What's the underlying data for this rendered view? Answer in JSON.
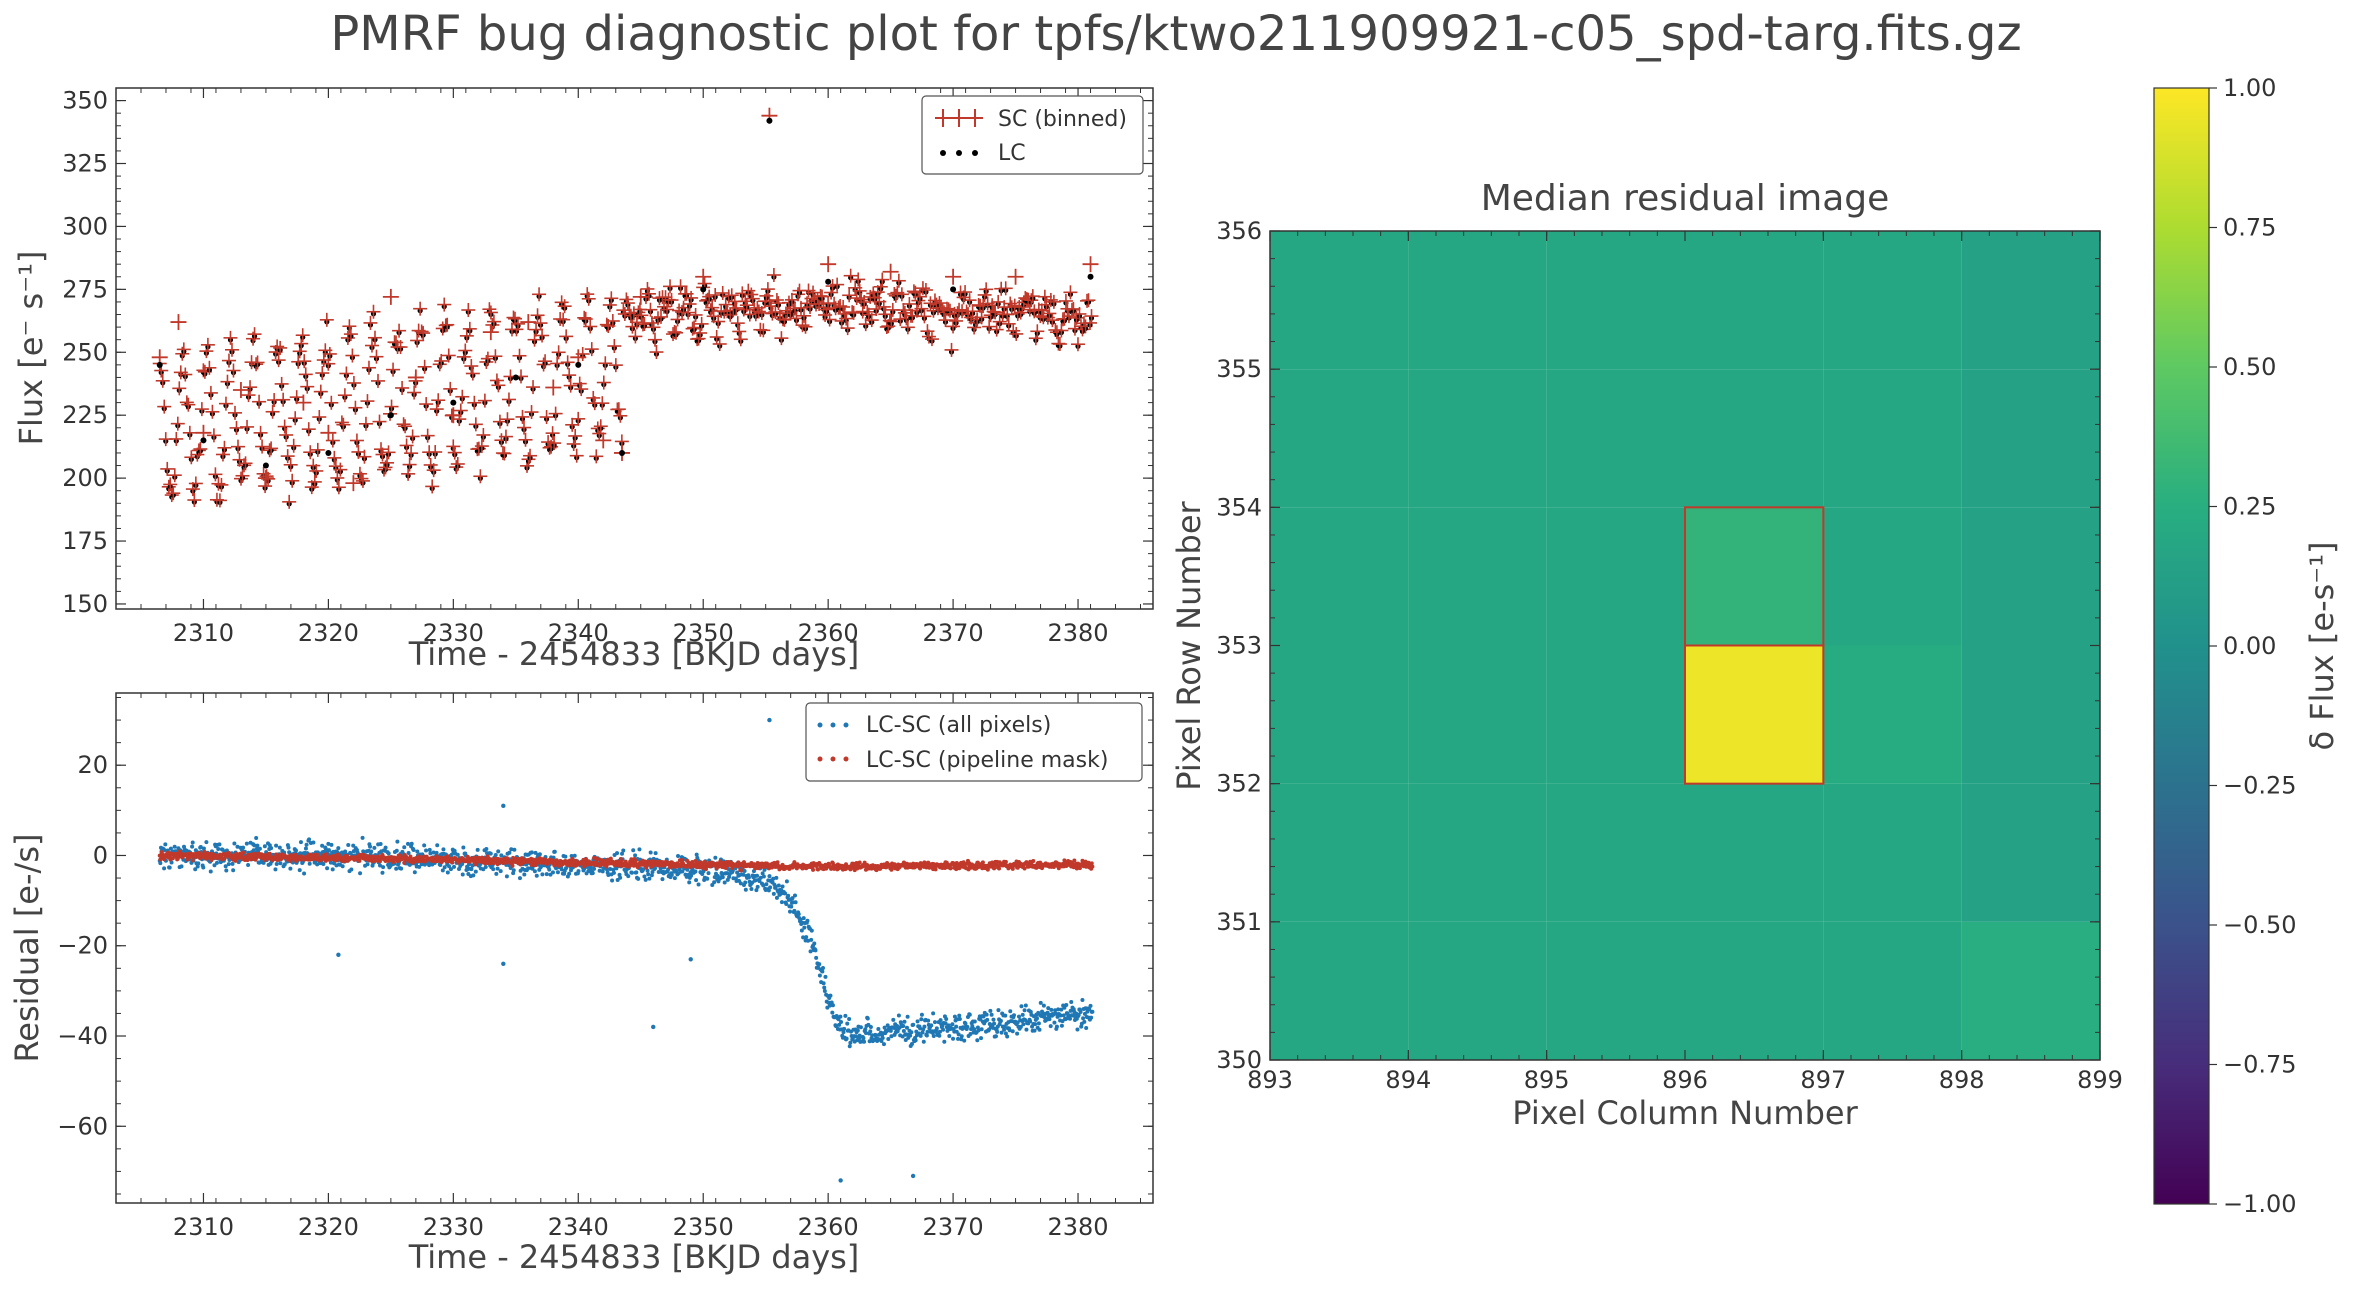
{
  "figure": {
    "title": "PMRF bug diagnostic plot for tpfs/ktwo211909921-c05_spd-targ.fits.gz"
  },
  "chart_data": [
    {
      "type": "scatter",
      "id": "flux",
      "xlabel": "Time - 2454833 [BKJD days]",
      "ylabel": "Flux [e⁻ s⁻¹]",
      "xlim": [
        2303,
        2386
      ],
      "ylim": [
        148,
        355
      ],
      "xticks": [
        2310,
        2320,
        2330,
        2340,
        2350,
        2360,
        2370,
        2380
      ],
      "yticks": [
        150,
        175,
        200,
        225,
        250,
        275,
        300,
        325,
        350
      ],
      "legend": {
        "position": "top-right",
        "entries": [
          "SC (binned)",
          "LC"
        ]
      },
      "series": [
        {
          "name": "SC (binned)",
          "color": "#c0392b",
          "marker": "plus",
          "description_points": [
            [
              2306.5,
              248
            ],
            [
              2308,
              262
            ],
            [
              2310,
              218
            ],
            [
              2313,
              235
            ],
            [
              2315,
              200
            ],
            [
              2318,
              230
            ],
            [
              2320,
              218
            ],
            [
              2322,
              198
            ],
            [
              2325,
              272
            ],
            [
              2327,
              240
            ],
            [
              2330,
              225
            ],
            [
              2333,
              258
            ],
            [
              2336,
              262
            ],
            [
              2338,
              236
            ],
            [
              2340,
              248
            ],
            [
              2342,
              215
            ],
            [
              2343.5,
              210
            ],
            [
              2345,
              272
            ],
            [
              2350,
              280
            ],
            [
              2355.3,
              344
            ],
            [
              2360,
              285
            ],
            [
              2365,
              282
            ],
            [
              2370,
              280
            ],
            [
              2375,
              280
            ],
            [
              2381,
              285
            ]
          ]
        },
        {
          "name": "LC",
          "color": "#000000",
          "marker": "dot",
          "description_points": [
            [
              2306.5,
              245
            ],
            [
              2310,
              215
            ],
            [
              2315,
              205
            ],
            [
              2320,
              210
            ],
            [
              2325,
              225
            ],
            [
              2330,
              230
            ],
            [
              2335,
              240
            ],
            [
              2340,
              245
            ],
            [
              2343.5,
              210
            ],
            [
              2350,
              275
            ],
            [
              2355.3,
              342
            ],
            [
              2360,
              278
            ],
            [
              2370,
              275
            ],
            [
              2381,
              280
            ]
          ]
        }
      ]
    },
    {
      "type": "scatter",
      "id": "residual",
      "xlabel": "Time - 2454833 [BKJD days]",
      "ylabel": "Residual [e-/s]",
      "xlim": [
        2303,
        2386
      ],
      "ylim": [
        -77,
        36
      ],
      "xticks": [
        2310,
        2320,
        2330,
        2340,
        2350,
        2360,
        2370,
        2380
      ],
      "yticks": [
        -60,
        -40,
        -20,
        0,
        20
      ],
      "legend": {
        "position": "top-right",
        "entries": [
          "LC-SC (all pixels)",
          "LC-SC (pipeline mask)"
        ]
      },
      "series": [
        {
          "name": "LC-SC (all pixels)",
          "color": "#1f77b4",
          "x": [
            2306.5,
            2310,
            2320,
            2330,
            2340,
            2350,
            2355,
            2357,
            2358,
            2359,
            2360,
            2361,
            2362,
            2365,
            2370,
            2375,
            2381
          ],
          "y": [
            0,
            0,
            0,
            -1,
            -2,
            -3,
            -5,
            -10,
            -15,
            -22,
            -32,
            -38,
            -40,
            -39,
            -38,
            -37,
            -35
          ]
        },
        {
          "name": "LC-SC (pipeline mask)",
          "color": "#c0392b",
          "x": [
            2306.5,
            2320,
            2340,
            2360,
            2381
          ],
          "y": [
            0,
            -0.5,
            -1.5,
            -2.5,
            -2
          ]
        }
      ],
      "outliers": [
        {
          "x": 2355.3,
          "y": 30
        },
        {
          "x": 2334,
          "y": 11
        },
        {
          "x": 2320.8,
          "y": -22
        },
        {
          "x": 2334,
          "y": -24
        },
        {
          "x": 2346,
          "y": -38
        },
        {
          "x": 2349,
          "y": -23
        },
        {
          "x": 2361,
          "y": -72
        },
        {
          "x": 2366.8,
          "y": -71
        }
      ]
    },
    {
      "type": "heatmap",
      "id": "median-residual",
      "title": "Median residual image",
      "xlabel": "Pixel Column Number",
      "ylabel": "Pixel Row Number",
      "xlim": [
        893,
        899
      ],
      "ylim": [
        350,
        356
      ],
      "xticks": [
        893,
        894,
        895,
        896,
        897,
        898,
        899
      ],
      "yticks": [
        350,
        351,
        352,
        353,
        354,
        355,
        356
      ],
      "cells": [
        {
          "col": 896,
          "row": 352,
          "value": 0.95
        },
        {
          "col": 896,
          "row": 353,
          "value": 0.3
        },
        {
          "col": 898,
          "row": 350,
          "value": 0.25
        },
        {
          "col": 897,
          "row": 352,
          "value": 0.23
        },
        {
          "col": 898,
          "row": 351,
          "value": 0.14
        },
        {
          "col": 898,
          "row": 352,
          "value": 0.14
        },
        {
          "col": 898,
          "row": 353,
          "value": 0.14
        },
        {
          "col": 898,
          "row": 354,
          "value": 0.14
        },
        {
          "col": 898,
          "row": 355,
          "value": 0.14
        }
      ],
      "default_value": 0.19,
      "outlined_cells": [
        {
          "col": 896,
          "row": 352
        },
        {
          "col": 896,
          "row": 353
        }
      ],
      "outline_color": "#c0392b",
      "colorbar": {
        "label": "δ Flux [e-s⁻¹]",
        "range": [
          -1,
          1
        ],
        "ticks": [
          -1.0,
          -0.75,
          -0.5,
          -0.25,
          0.0,
          0.25,
          0.5,
          0.75,
          1.0
        ],
        "tick_labels": [
          "−1.00",
          "−0.75",
          "−0.50",
          "−0.25",
          "0.00",
          "0.25",
          "0.50",
          "0.75",
          "1.00"
        ],
        "colormap": "viridis"
      }
    }
  ]
}
